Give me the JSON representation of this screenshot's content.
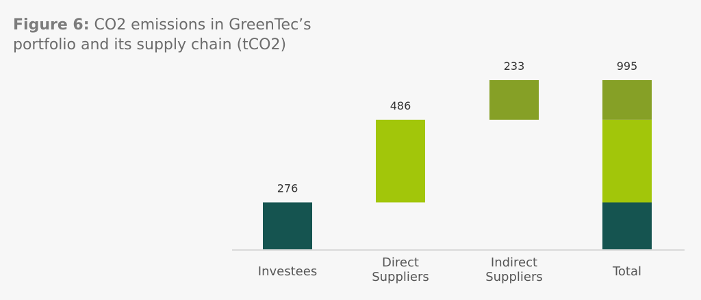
{
  "title": {
    "lead": "Figure 6:",
    "text": "CO2 emissions in GreenTec’s portfolio and its supply chain (tCO2)"
  },
  "chart_data": {
    "type": "bar",
    "subtype": "waterfall",
    "title": "Figure 6: CO2 emissions in GreenTec’s portfolio and its supply chain (tCO2)",
    "categories": [
      [
        "Investees"
      ],
      [
        "Direct",
        "Suppliers"
      ],
      [
        "Indirect",
        "Suppliers"
      ],
      [
        "Total"
      ]
    ],
    "values": [
      276,
      486,
      233,
      995
    ],
    "ylim": [
      0,
      995
    ],
    "grid": false,
    "colors": {
      "Investees": "#155450",
      "Direct Suppliers": "#a2c60a",
      "Indirect Suppliers": "#86a026"
    }
  }
}
